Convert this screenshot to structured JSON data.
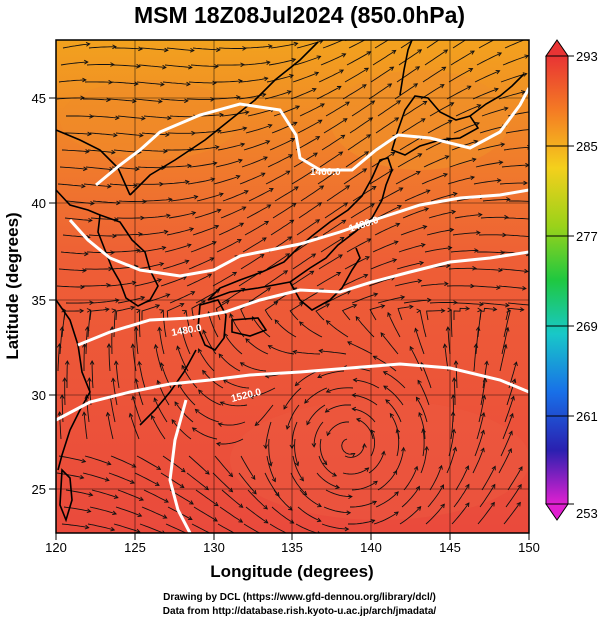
{
  "title": "MSM 18Z08Jul2024 (850.0hPa)",
  "x_axis": {
    "label": "Longitude (degrees)",
    "range": [
      120,
      150
    ],
    "ticks": [
      "120",
      "125",
      "130",
      "135",
      "140",
      "145",
      "150"
    ]
  },
  "y_axis": {
    "label": "Latitude  (degrees)",
    "range": [
      22.5,
      48
    ],
    "ticks": [
      "25",
      "30",
      "35",
      "40",
      "45"
    ]
  },
  "colorbar": {
    "min": 253,
    "max": 293,
    "ticks": [
      "293",
      "285",
      "277",
      "269",
      "261",
      "253"
    ],
    "unit_note": ""
  },
  "contours": [
    {
      "label": "1460.0"
    },
    {
      "label": "1480.0"
    },
    {
      "label": "1480.0"
    },
    {
      "label": "1520.0"
    }
  ],
  "credits": {
    "line1": "Drawing by DCL (https://www.gfd-dennou.org/library/dcl/)",
    "line2": "Data from http://database.rish.kyoto-u.ac.jp/arch/jmadata/"
  },
  "colors": {
    "warm": "#ec4a3a",
    "orange": "#f07a2a",
    "yellow_green": "#9ccc20",
    "contour": "#ffffff",
    "coast": "#000000"
  }
}
